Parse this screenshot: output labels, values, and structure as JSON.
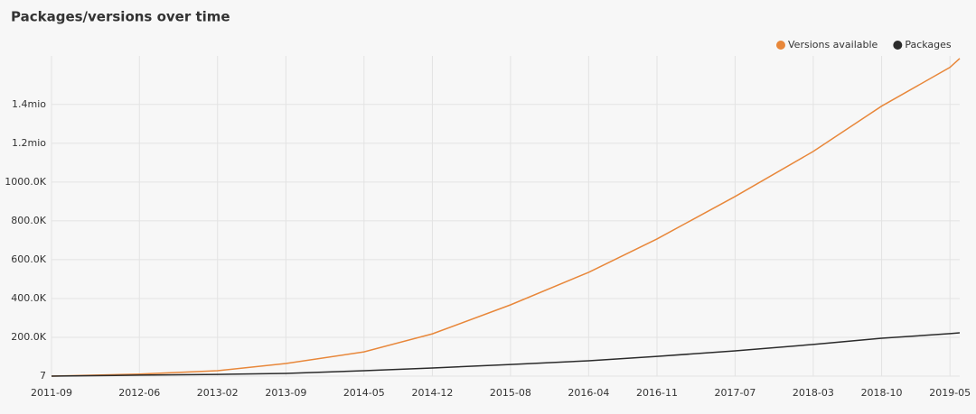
{
  "chart_data": {
    "type": "line",
    "title": "Packages/versions over time",
    "x": [
      "2011-09",
      "2012-06",
      "2013-02",
      "2013-09",
      "2014-05",
      "2014-12",
      "2015-08",
      "2016-04",
      "2016-11",
      "2017-07",
      "2018-03",
      "2018-10",
      "2019-05",
      "2019-06"
    ],
    "series": [
      {
        "name": "Versions available",
        "color": "#e8873a",
        "values": [
          0,
          10000,
          28000,
          65000,
          125000,
          218000,
          367000,
          535000,
          707000,
          926000,
          1158000,
          1391000,
          1591000,
          1637000
        ]
      },
      {
        "name": "Packages",
        "color": "#2b2b2b",
        "values": [
          0,
          5000,
          9000,
          14000,
          28000,
          42000,
          60000,
          79000,
          102000,
          130000,
          163000,
          195000,
          219000,
          223000
        ]
      }
    ],
    "xlim": [
      "2011-09",
      "2019-06"
    ],
    "xticks": [
      "2011-09",
      "2012-06",
      "2013-02",
      "2013-09",
      "2014-05",
      "2014-12",
      "2015-08",
      "2016-04",
      "2016-11",
      "2017-07",
      "2018-03",
      "2018-10",
      "2019-05"
    ],
    "ylim": [
      7,
      1650000
    ],
    "yticks": [
      7,
      {
        "value": 200000,
        "label": "200.0K"
      },
      {
        "value": 400000,
        "label": "400.0K"
      },
      {
        "value": 600000,
        "label": "600.0K"
      },
      {
        "value": 800000,
        "label": "800.0K"
      },
      {
        "value": 1000000,
        "label": "1000.0K"
      },
      {
        "value": 1200000,
        "label": "1.2mio"
      },
      {
        "value": 1400000,
        "label": "1.4mio"
      }
    ],
    "grid": true,
    "legend": "top-right"
  }
}
